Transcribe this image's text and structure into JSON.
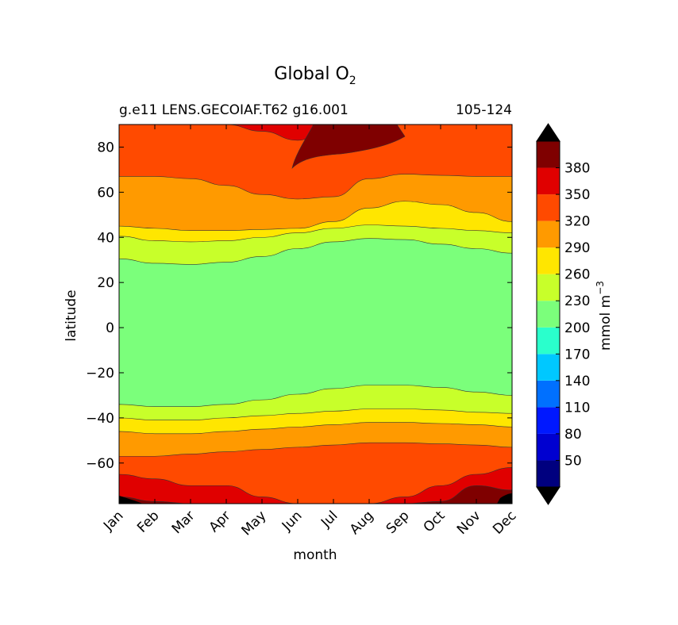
{
  "chart_data": {
    "type": "contour",
    "title": "Global O",
    "title_subscript": "2",
    "subtitle_left": "g.e11 LENS.GECOIAF.T62 g16.001",
    "subtitle_right": "105-124",
    "xlabel": "month",
    "ylabel": "latitude",
    "x_categories": [
      "Jan",
      "Feb",
      "Mar",
      "Apr",
      "May",
      "Jun",
      "Jul",
      "Aug",
      "Sep",
      "Oct",
      "Nov",
      "Dec"
    ],
    "xlim": [
      0,
      11
    ],
    "ylim": [
      -78,
      90
    ],
    "yticks": [
      -60,
      -40,
      -20,
      0,
      20,
      40,
      60,
      80
    ],
    "ytick_labels": [
      "−60",
      "−40",
      "−20",
      "0",
      "20",
      "40",
      "60",
      "80"
    ],
    "colorbar": {
      "label": "mmol m",
      "label_superscript": "−3",
      "levels": [
        20,
        50,
        80,
        110,
        140,
        170,
        200,
        230,
        260,
        290,
        320,
        350,
        380,
        410
      ],
      "tick_labels": [
        "50",
        "80",
        "110",
        "140",
        "170",
        "200",
        "230",
        "260",
        "290",
        "320",
        "350",
        "380"
      ],
      "colors": [
        "#00007f",
        "#0000d0",
        "#0018ff",
        "#0070ff",
        "#00c8ff",
        "#2affcc",
        "#7bff7b",
        "#c8ff2a",
        "#ffe600",
        "#ff9a00",
        "#ff4a00",
        "#e00000",
        "#7f0000"
      ],
      "extend": "both",
      "under_color": "#000000",
      "over_color": "#000000"
    },
    "bands": [
      {
        "level": "230-260",
        "upper": [
          30.5,
          28.5,
          28,
          29,
          31.5,
          35,
          38,
          39.5,
          39,
          37,
          35,
          33
        ],
        "lower": [
          -34,
          -35,
          -35,
          -34,
          -32,
          -29.5,
          -27,
          -25.5,
          -25.5,
          -26.5,
          -28.5,
          -30
        ]
      },
      {
        "level": "260-290",
        "upper": [
          40.5,
          38.5,
          38,
          38.5,
          40,
          42,
          44,
          45.5,
          45,
          44,
          43,
          42
        ],
        "lower": [
          -40,
          -41,
          -41,
          -40,
          -39,
          -38,
          -37,
          -36,
          -36,
          -36.5,
          -37.5,
          -38
        ]
      },
      {
        "level": "290-320",
        "upper": [
          45,
          44,
          43,
          43,
          43.5,
          44,
          47,
          53,
          56,
          54.5,
          51,
          47
        ],
        "lower": [
          -46,
          -47,
          -47,
          -46,
          -45,
          -44,
          -43,
          -42,
          -42,
          -42.5,
          -43,
          -44
        ]
      },
      {
        "level": "320-350",
        "upper": [
          67,
          67,
          66,
          63,
          59,
          57,
          58,
          66,
          68,
          67.5,
          67,
          67
        ],
        "lower": [
          -57,
          -57,
          -56,
          -55,
          -54,
          -53,
          -52,
          -51,
          -51,
          -51.5,
          -52,
          -53
        ]
      },
      {
        "level": "350-380",
        "upper": [
          90,
          90,
          90,
          90,
          87,
          83,
          90,
          90,
          90,
          90,
          90,
          90
        ],
        "lower": [
          -65,
          -67,
          -70,
          -70,
          -75,
          -78,
          -78,
          -78,
          -75,
          -70,
          -65,
          -62
        ]
      },
      {
        "level": "380-410",
        "upper": [
          90,
          90,
          90,
          90,
          90,
          90,
          90,
          90,
          90,
          90,
          90,
          90
        ],
        "lower": [
          -75,
          -77,
          -78,
          -78,
          -78,
          -78,
          -78,
          -78,
          -78,
          -77,
          -70,
          -72
        ]
      }
    ]
  }
}
